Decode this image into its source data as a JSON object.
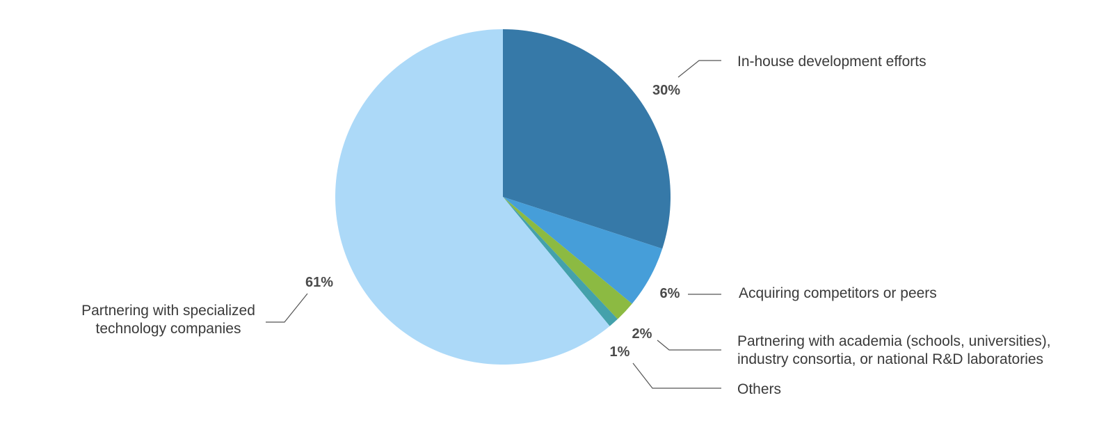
{
  "chart_data": {
    "type": "pie",
    "title": "",
    "slices": [
      {
        "label": "In-house development efforts",
        "value": 30,
        "value_label": "30%",
        "color": "#3679a8"
      },
      {
        "label": "Acquiring competitors or peers",
        "value": 6,
        "value_label": "6%",
        "color": "#469ed9"
      },
      {
        "label": "Partnering with academia (schools, universities), industry consortia, or national R&D laboratories",
        "value": 2,
        "value_label": "2%",
        "color": "#8cba42",
        "label_lines": [
          "Partnering with academia (schools, universities),",
          "industry consortia, or national R&D laboratories"
        ]
      },
      {
        "label": "Others",
        "value": 1,
        "value_label": "1%",
        "color": "#44a1ab"
      },
      {
        "label": "Partnering with specialized technology companies",
        "value": 61,
        "value_label": "61%",
        "color": "#acd9f8",
        "label_lines": [
          "Partnering with specialized",
          "technology companies"
        ]
      }
    ]
  }
}
